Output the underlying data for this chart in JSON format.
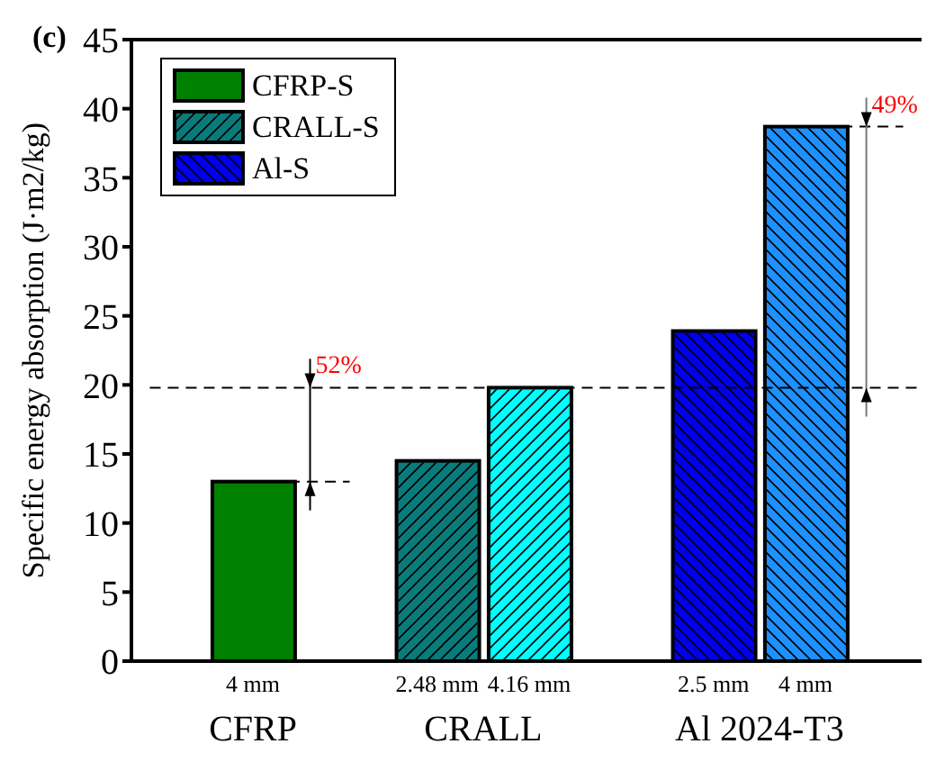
{
  "chart_data": {
    "type": "bar",
    "ylabel": "Specific energy absorption (J·m2/kg)",
    "categories": [
      "4 mm",
      "2.48 mm",
      "4.16 mm",
      "2.5 mm",
      "4 mm"
    ],
    "series": [
      {
        "name": "CFRP-S",
        "values": [
          13.0,
          null,
          null,
          null,
          null
        ],
        "colors": [
          "#008000",
          null,
          null,
          null,
          null
        ]
      },
      {
        "name": "CRALL-S",
        "values": [
          null,
          14.5,
          19.8,
          null,
          null
        ],
        "colors": [
          null,
          "#0a7b7b",
          "#00ffff",
          null,
          null
        ]
      },
      {
        "name": "Al-S",
        "values": [
          null,
          null,
          null,
          23.9,
          38.7
        ],
        "colors": [
          null,
          null,
          null,
          "#0000ee",
          "#1e90ff"
        ]
      }
    ],
    "ylim": [
      0,
      45
    ],
    "yticks": [
      0,
      5,
      10,
      15,
      20,
      25,
      30,
      35,
      40,
      45
    ],
    "legend": "top left",
    "ref_lines": [
      {
        "axis": "y",
        "value": 13.0,
        "line_style": "dashed"
      },
      {
        "axis": "y",
        "value": 19.8,
        "line_style": "dashed"
      },
      {
        "axis": "y",
        "value": 38.7,
        "line_style": "dashed"
      }
    ],
    "annotations": [
      "(c)",
      "CFRP",
      "CRALL",
      "Al 2024-T3",
      "52%",
      "49%"
    ]
  }
}
